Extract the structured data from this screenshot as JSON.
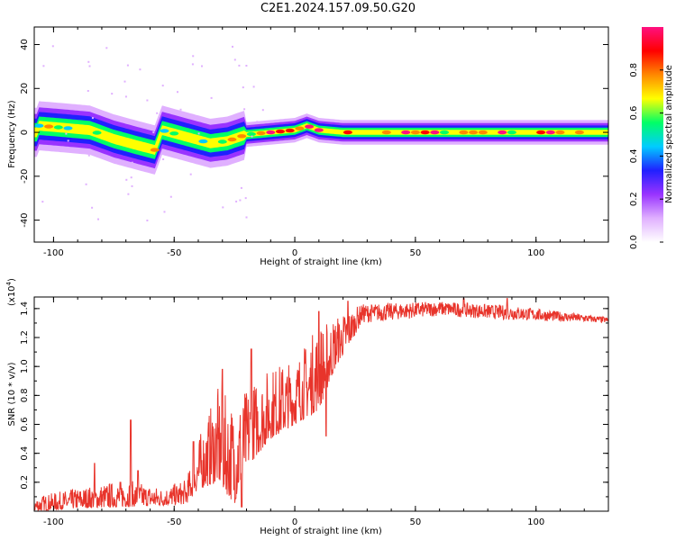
{
  "title": "C2E1.2024.157.09.50.G20",
  "colors": {
    "snr_line": "#e8342b",
    "frame": "#000000",
    "background": "#ffffff"
  },
  "chart_data": [
    {
      "type": "heatmap",
      "title": "",
      "xlabel": "Height of straight line (km)",
      "ylabel": "Frequency (Hz)",
      "xlim": [
        -108,
        130
      ],
      "ylim": [
        -50,
        48
      ],
      "x_ticks": [
        -100,
        -50,
        0,
        50,
        100
      ],
      "y_ticks": [
        -40,
        -20,
        0,
        20,
        40
      ],
      "colorbar": {
        "label": "Normalized spectral amplitude",
        "range": [
          0,
          1
        ],
        "ticks": [
          0.0,
          0.2,
          0.4,
          0.6,
          0.8
        ],
        "colormap": [
          "#ffffff",
          "#e0b0ff",
          "#9933ff",
          "#2020ff",
          "#00ccff",
          "#00ff66",
          "#ffff00",
          "#ff8800",
          "#ff0000",
          "#ff1080"
        ]
      },
      "ridge": [
        {
          "x": -106,
          "f": 3
        },
        {
          "x": -95,
          "f": 2
        },
        {
          "x": -85,
          "f": 1
        },
        {
          "x": -75,
          "f": -3
        },
        {
          "x": -65,
          "f": -6
        },
        {
          "x": -58,
          "f": -8
        },
        {
          "x": -55,
          "f": 1
        },
        {
          "x": -45,
          "f": -2
        },
        {
          "x": -35,
          "f": -5
        },
        {
          "x": -28,
          "f": -4
        },
        {
          "x": -20,
          "f": -1
        },
        {
          "x": -10,
          "f": 0
        },
        {
          "x": 0,
          "f": 1
        },
        {
          "x": 5,
          "f": 3
        },
        {
          "x": 10,
          "f": 1
        },
        {
          "x": 20,
          "f": 0
        },
        {
          "x": 130,
          "f": 0
        }
      ]
    },
    {
      "type": "line",
      "title": "",
      "xlabel": "Height of straight line (km)",
      "ylabel": "SNR (10 * v/v)",
      "y_exponent": "(x10",
      "y_exponent_power": "4",
      "y_exponent_close": ")",
      "xlim": [
        -108,
        130
      ],
      "ylim": [
        0,
        1.48
      ],
      "x_ticks": [
        -100,
        -50,
        0,
        50,
        100
      ],
      "y_ticks": [
        0.2,
        0.4,
        0.6,
        0.8,
        1.0,
        1.2,
        1.4
      ],
      "envelope": [
        {
          "x": -108,
          "low": 0.0,
          "high": 0.1
        },
        {
          "x": -90,
          "low": 0.02,
          "high": 0.16
        },
        {
          "x": -70,
          "low": 0.03,
          "high": 0.22
        },
        {
          "x": -55,
          "low": 0.04,
          "high": 0.16
        },
        {
          "x": -45,
          "low": 0.05,
          "high": 0.22
        },
        {
          "x": -40,
          "low": 0.15,
          "high": 0.5
        },
        {
          "x": -32,
          "low": 0.2,
          "high": 0.85
        },
        {
          "x": -25,
          "low": 0.05,
          "high": 0.75
        },
        {
          "x": -20,
          "low": 0.3,
          "high": 0.85
        },
        {
          "x": -10,
          "low": 0.5,
          "high": 1.0
        },
        {
          "x": 0,
          "low": 0.6,
          "high": 1.05
        },
        {
          "x": 10,
          "low": 0.7,
          "high": 1.3
        },
        {
          "x": 17,
          "low": 1.0,
          "high": 1.35
        },
        {
          "x": 28,
          "low": 1.3,
          "high": 1.43
        },
        {
          "x": 60,
          "low": 1.35,
          "high": 1.45
        },
        {
          "x": 90,
          "low": 1.32,
          "high": 1.42
        },
        {
          "x": 130,
          "low": 1.3,
          "high": 1.34
        }
      ],
      "spikes": [
        {
          "x": -83,
          "y": 0.33
        },
        {
          "x": -68,
          "y": 0.63
        },
        {
          "x": -65,
          "y": 0.28
        },
        {
          "x": -42,
          "y": 0.48
        },
        {
          "x": -30,
          "y": 0.98
        },
        {
          "x": -18,
          "y": 1.12
        },
        {
          "x": 10,
          "y": 1.38
        },
        {
          "x": 22,
          "y": 1.45
        },
        {
          "x": 70,
          "y": 1.47
        },
        {
          "x": 88,
          "y": 1.47
        }
      ],
      "dips": [
        {
          "x": 13,
          "y": 0.52
        },
        {
          "x": -22,
          "y": 0.03
        }
      ]
    }
  ]
}
